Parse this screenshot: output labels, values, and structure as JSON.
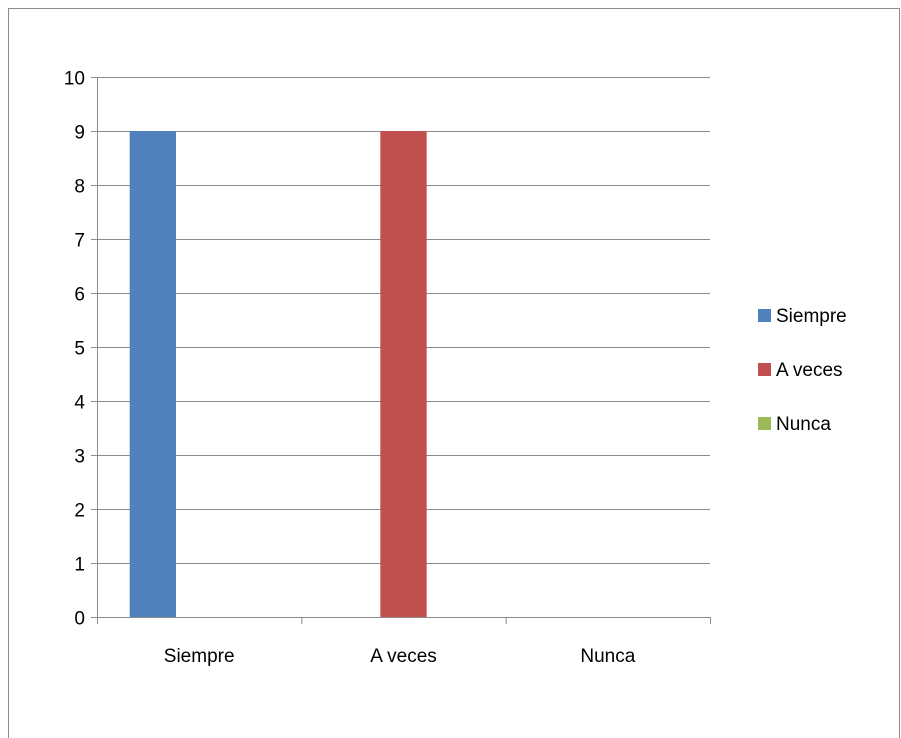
{
  "chart_data": {
    "type": "bar",
    "categories": [
      "Siempre",
      "A veces",
      "Nunca"
    ],
    "series": [
      {
        "name": "Siempre",
        "color": "#4F81BD",
        "values": [
          9,
          0,
          0
        ]
      },
      {
        "name": "A veces",
        "color": "#C0504D",
        "values": [
          0,
          9,
          0
        ]
      },
      {
        "name": "Nunca",
        "color": "#9BBB59",
        "values": [
          0,
          0,
          0
        ]
      }
    ],
    "ylim": [
      0,
      10
    ],
    "yticks": [
      "0",
      "1",
      "2",
      "3",
      "4",
      "5",
      "6",
      "7",
      "8",
      "9",
      "10"
    ],
    "grid": true,
    "legend_position": "right",
    "title": "",
    "xlabel": "",
    "ylabel": ""
  }
}
